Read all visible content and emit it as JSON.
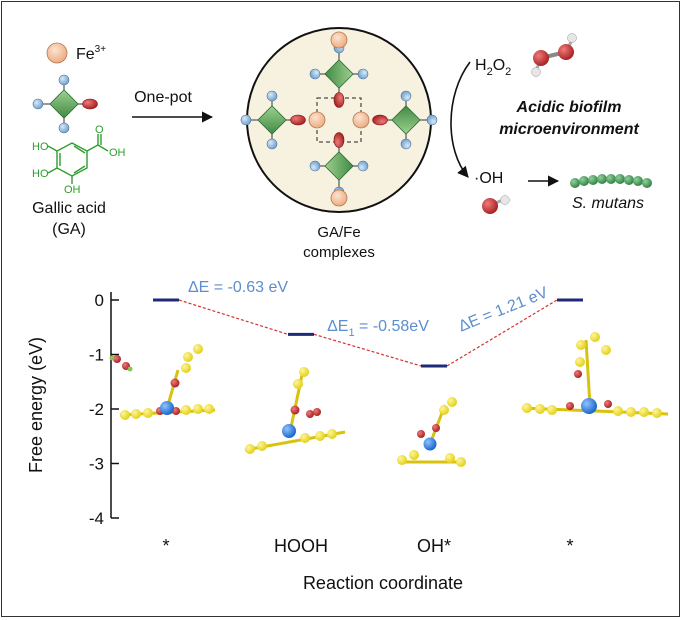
{
  "legend": {
    "fe_label": "Fe",
    "fe_charge": "3+",
    "ga_name": "Gallic acid",
    "ga_abbr": "(GA)"
  },
  "reaction": {
    "arrow_label": "One-pot",
    "product_line1": "GA/Fe",
    "product_line2": "complexes"
  },
  "mechanism": {
    "h2o2_main": "H",
    "h2o2_sub1": "2",
    "h2o2_mid": "O",
    "h2o2_sub2": "2",
    "env_line1": "Acidic biofilm",
    "env_line2": "microenvironment",
    "radical": "·OH",
    "target": "S. mutans"
  },
  "structure_labels": {
    "ga_oh_a": "HO",
    "ga_oh_b": "HO",
    "ga_oh_c": "OH",
    "ga_oh_d": "OH",
    "ga_o": "O"
  },
  "colors": {
    "fe": "#f6c7a4",
    "ga_diamond": "#6aa56a",
    "ga_oxygen": "#c93a3a",
    "ga_hydroxyl": "#8fb8dd",
    "gallic_structure": "#2e9d2e",
    "level_bar": "#1f2a7a",
    "annotation": "#5b8ecf",
    "connector": "#d62f2f",
    "bacteria": "#4c9a5b"
  },
  "chart_data": {
    "type": "energy-profile",
    "ylabel": "Free energy (eV)",
    "xlabel": "Reaction coordinate",
    "ylim": [
      -4,
      0
    ],
    "yticks": [
      "0",
      "-1",
      "-2",
      "-3",
      "-4"
    ],
    "categories": [
      "*",
      "HOOH",
      "OH*",
      "*"
    ],
    "values": [
      0,
      -0.63,
      -1.21,
      0
    ],
    "annotations": [
      {
        "prefix": "ΔE = ",
        "sub": "",
        "value": "-0.63 eV"
      },
      {
        "prefix": "ΔE",
        "sub": "1",
        "value": " = -0.58eV"
      },
      {
        "prefix": "ΔE = ",
        "sub": "",
        "value": "1.21 eV"
      }
    ]
  }
}
